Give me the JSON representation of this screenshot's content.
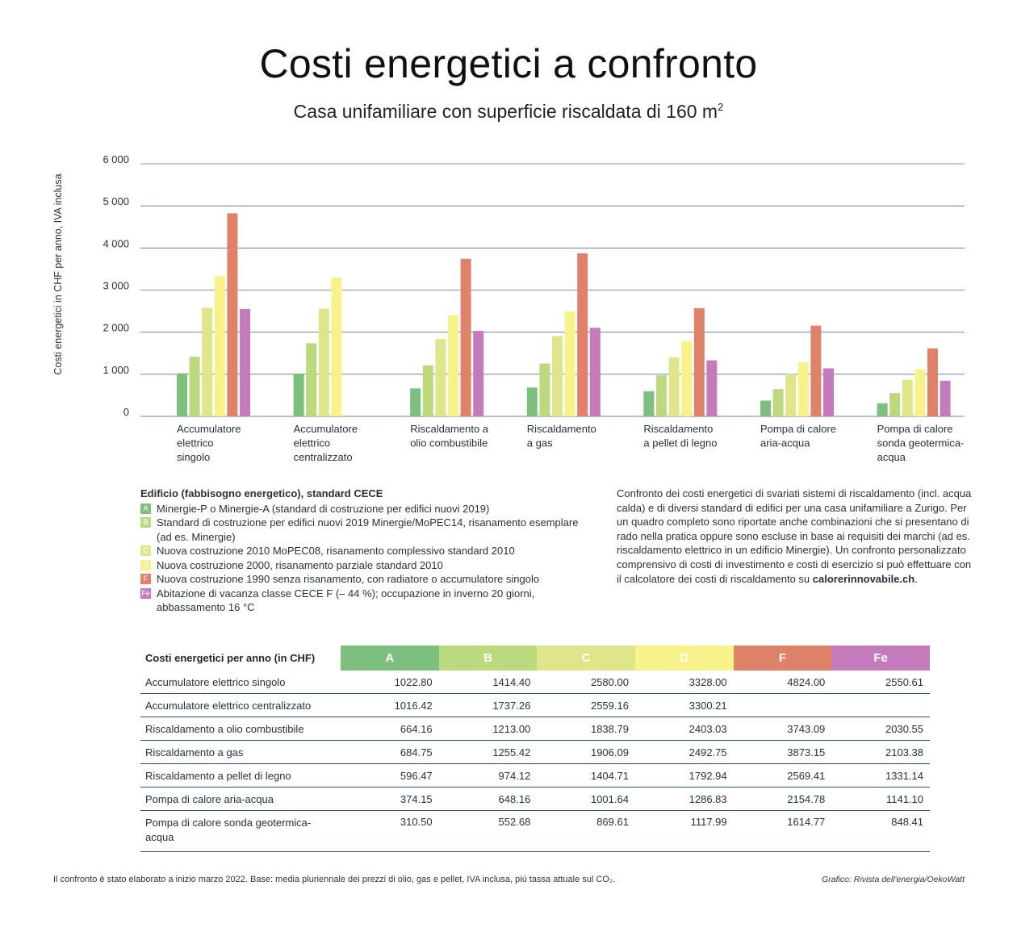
{
  "title": "Costi energetici a confronto",
  "subtitle": "Casa unifamiliare con superficie riscaldata di 160 m",
  "subtitle_sup": "2",
  "chart_data": {
    "type": "bar",
    "title": "Costi energetici a confronto",
    "ylabel": "Costi energetici in CHF per anno, IVA inclusa",
    "ylim": [
      0,
      6000
    ],
    "yticks": [
      0,
      1000,
      2000,
      3000,
      4000,
      5000,
      6000
    ],
    "ytick_labels": [
      "0",
      "1 000",
      "2 000",
      "3 000",
      "4 000",
      "5 000",
      "6 000"
    ],
    "categories": [
      [
        "Accumulatore",
        "elettrico",
        "singolo"
      ],
      [
        "Accumulatore",
        "elettrico",
        "centralizzato"
      ],
      [
        "Riscaldamento a",
        "olio combustibile"
      ],
      [
        "Riscaldamento",
        "a gas"
      ],
      [
        "Riscaldamento",
        "a pellet di legno"
      ],
      [
        "Pompa di calore",
        "aria-acqua"
      ],
      [
        "Pompa di calore",
        "sonda geotermica-",
        "acqua"
      ]
    ],
    "series": [
      {
        "name": "A",
        "color": "#7cbf7f",
        "values": [
          1022.8,
          1016.42,
          664.16,
          684.75,
          596.47,
          374.15,
          310.5
        ]
      },
      {
        "name": "B",
        "color": "#bcd97e",
        "values": [
          1414.4,
          1737.26,
          1213.0,
          1255.42,
          974.12,
          648.16,
          552.68
        ]
      },
      {
        "name": "C",
        "color": "#dfe58a",
        "values": [
          2580.0,
          2559.16,
          1838.79,
          1906.09,
          1404.71,
          1001.64,
          869.61
        ]
      },
      {
        "name": "D",
        "color": "#f7f28a",
        "values": [
          3328.0,
          3300.21,
          2403.03,
          2492.75,
          1792.94,
          1286.83,
          1117.99
        ]
      },
      {
        "name": "F",
        "color": "#de826a",
        "values": [
          4824.0,
          null,
          3743.09,
          3873.15,
          2569.41,
          2154.78,
          1614.77
        ]
      },
      {
        "name": "Fe",
        "color": "#c47bbb",
        "values": [
          2550.61,
          null,
          2030.55,
          2103.38,
          1331.14,
          1141.1,
          848.41
        ]
      }
    ]
  },
  "legend": {
    "heading": "Edificio (fabbisogno energetico), standard CECE",
    "items": [
      {
        "key": "A",
        "color": "#7cbf7f",
        "text": "Minergie-P o Minergie-A (standard di costruzione per edifici nuovi 2019)"
      },
      {
        "key": "B",
        "color": "#bcd97e",
        "text": "Standard di costruzione per edifici nuovi 2019 Minergie/MoPEC14, risanamento esemplare (ad es. Minergie)"
      },
      {
        "key": "C",
        "color": "#dfe58a",
        "text": "Nuova costruzione 2010 MoPEC08, risanamento complessivo standard 2010"
      },
      {
        "key": "D",
        "color": "#f7f28a",
        "text": "Nuova costruzione 2000, risanamento parziale standard 2010"
      },
      {
        "key": "F",
        "color": "#de826a",
        "text": "Nuova costruzione 1990 senza risanamento, con radiatore o accumulatore singolo"
      },
      {
        "key": "Fe",
        "color": "#c47bbb",
        "text": "Abitazione di vacanza classe CECE F (– 44 %); occupazione in inverno 20 giorni, abbassamento 16 °C"
      }
    ]
  },
  "description": {
    "text": "Confronto dei costi energetici di svariati sistemi di riscaldamento (incl. acqua calda) e di diversi standard di edifici per una casa unifamiliare a Zurigo. Per un quadro completo sono riportate anche combinazioni che si presentano di rado nella pratica  oppure sono escluse in base ai requisiti dei marchi (ad es. riscaldamento elettrico in un edificio Minergie). Un confronto personalizzato comprensivo di costi di investimento e costi di esercizio si può effettuare con il calcolatore dei costi di riscaldamento su ",
    "link": "calorerinnovabile.ch",
    "end": "."
  },
  "table": {
    "header": "Costi energetici per anno (in CHF)",
    "columns": [
      {
        "label": "A",
        "color": "#7cbf7f"
      },
      {
        "label": "B",
        "color": "#bcd97e"
      },
      {
        "label": "C",
        "color": "#dfe58a"
      },
      {
        "label": "D",
        "color": "#f7f28a"
      },
      {
        "label": "F",
        "color": "#de826a"
      },
      {
        "label": "Fe",
        "color": "#c47bbb"
      }
    ],
    "rows": [
      {
        "label": "Accumulatore elettrico singolo",
        "values": [
          "1022.80",
          "1414.40",
          "2580.00",
          "3328.00",
          "4824.00",
          "2550.61"
        ]
      },
      {
        "label": "Accumulatore elettrico centralizzato",
        "values": [
          "1016.42",
          "1737.26",
          "2559.16",
          "3300.21",
          "",
          ""
        ]
      },
      {
        "label": "Riscaldamento a olio combustibile",
        "values": [
          "664.16",
          "1213.00",
          "1838.79",
          "2403.03",
          "3743.09",
          "2030.55"
        ]
      },
      {
        "label": "Riscaldamento a gas",
        "values": [
          "684.75",
          "1255.42",
          "1906.09",
          "2492.75",
          "3873.15",
          "2103.38"
        ]
      },
      {
        "label": "Riscaldamento a pellet di legno",
        "values": [
          "596.47",
          "974.12",
          "1404.71",
          "1792.94",
          "2569.41",
          "1331.14"
        ]
      },
      {
        "label": "Pompa di calore aria-acqua",
        "values": [
          "374.15",
          "648.16",
          "1001.64",
          "1286.83",
          "2154.78",
          "1141.10"
        ]
      },
      {
        "label": "Pompa di calore sonda geotermica-acqua",
        "values": [
          "310.50",
          "552.68",
          "869.61",
          "1117.99",
          "1614.77",
          "848.41"
        ]
      }
    ]
  },
  "footnote": "Il confronto è stato elaborato a inizio marzo 2022. Base: media pluriennale dei prezzi di olio, gas e pellet, IVA inclusa, più tassa attuale sul CO₂.",
  "credit": "Grafico: Rivista dell'energia/OekoWatt"
}
